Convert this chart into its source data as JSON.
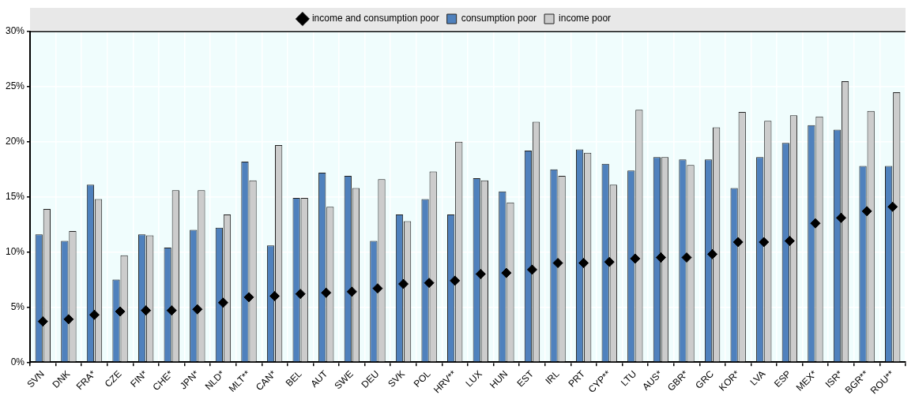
{
  "chart_data": {
    "type": "bar",
    "categories": [
      "SVN",
      "DNK",
      "FRA*",
      "CZE",
      "FIN*",
      "CHE*",
      "JPN*",
      "NLD*",
      "MLT**",
      "CAN*",
      "BEL",
      "AUT",
      "SWE",
      "DEU",
      "SVK",
      "POL",
      "HRV**",
      "LUX",
      "HUN",
      "EST",
      "IRL",
      "PRT",
      "CYP**",
      "LTU",
      "AUS*",
      "GBR*",
      "GRC",
      "KOR*",
      "LVA",
      "ESP",
      "MEX*",
      "ISR*",
      "BGR**",
      "ROU**"
    ],
    "series": [
      {
        "name": "consumption poor",
        "color": "#4f81bd",
        "values": [
          11.6,
          11.0,
          16.1,
          7.5,
          11.6,
          10.4,
          12.0,
          12.2,
          18.2,
          10.6,
          14.9,
          17.2,
          16.9,
          11.0,
          13.4,
          14.8,
          13.4,
          16.7,
          15.5,
          19.2,
          17.5,
          19.3,
          18.0,
          17.4,
          18.6,
          18.4,
          18.4,
          15.8,
          18.6,
          19.9,
          21.5,
          21.1,
          17.8,
          17.8
        ]
      },
      {
        "name": "income poor",
        "color": "#cccccc",
        "values": [
          13.9,
          11.9,
          14.8,
          9.7,
          11.5,
          15.6,
          15.6,
          13.4,
          16.5,
          19.7,
          14.9,
          14.1,
          15.8,
          16.6,
          12.8,
          17.3,
          20.0,
          16.5,
          14.5,
          21.8,
          16.9,
          19.0,
          16.1,
          22.9,
          18.6,
          17.9,
          21.3,
          22.7,
          21.9,
          22.4,
          22.3,
          25.5,
          22.8,
          24.5
        ]
      },
      {
        "name": "income and consumption poor",
        "type": "scatter",
        "color": "#000000",
        "x": [
          "SVN",
          "DNK",
          "FRA*",
          "CZE",
          "FIN*",
          "CHE*",
          "JPN*",
          "NLD*",
          "MLT**",
          "CAN*",
          "BEL",
          "AUT",
          "SWE",
          "DEU",
          "SVK",
          "POL",
          "HRV**",
          "LUX",
          "HUN",
          "EST",
          "IRL",
          "PRT",
          "CYP**",
          "LTU",
          "AUS*",
          "GBR*",
          "GRC",
          "KOR*",
          "LVA",
          "ESP",
          "MEX*",
          "ISR*",
          "BGR**",
          "ROU**"
        ],
        "values": [
          3.7,
          3.9,
          4.3,
          4.6,
          4.7,
          4.7,
          4.8,
          5.4,
          5.9,
          6.0,
          6.2,
          6.3,
          6.4,
          6.7,
          7.1,
          7.2,
          7.4,
          8.0,
          8.1,
          8.4,
          9.0,
          9.0,
          9.1,
          9.4,
          9.5,
          9.5,
          9.8,
          10.9,
          10.9,
          11.0,
          12.6,
          13.1,
          13.7,
          14.1
        ]
      }
    ],
    "marker": "diamond",
    "ylim": [
      0,
      30
    ],
    "yticks": [
      {
        "value": 0,
        "label": "0%"
      },
      {
        "value": 5,
        "label": "5%"
      },
      {
        "value": 10,
        "label": "10%"
      },
      {
        "value": 15,
        "label": "15%"
      },
      {
        "value": 20,
        "label": "20%"
      },
      {
        "value": 25,
        "label": "25%"
      },
      {
        "value": 30,
        "label": "30%"
      }
    ],
    "grid": true,
    "legend": "top"
  }
}
